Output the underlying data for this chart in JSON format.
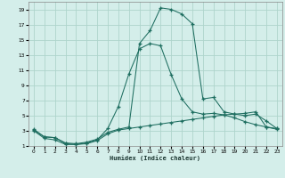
{
  "xlabel": "Humidex (Indice chaleur)",
  "background_color": "#d4eeea",
  "grid_color": "#aed4cc",
  "line_color": "#1e6e60",
  "xlim": [
    -0.5,
    23.5
  ],
  "ylim": [
    1,
    20
  ],
  "xticks": [
    0,
    1,
    2,
    3,
    4,
    5,
    6,
    7,
    8,
    9,
    10,
    11,
    12,
    13,
    14,
    15,
    16,
    17,
    18,
    19,
    20,
    21,
    22,
    23
  ],
  "yticks": [
    1,
    3,
    5,
    7,
    9,
    11,
    13,
    15,
    17,
    19
  ],
  "series_main_x": [
    0,
    1,
    2,
    3,
    4,
    5,
    6,
    7,
    8,
    9,
    10,
    11,
    12,
    13,
    14,
    15,
    16,
    17,
    18,
    19,
    20,
    21,
    22,
    23
  ],
  "series_main_y": [
    3.2,
    2.2,
    2.1,
    1.4,
    1.3,
    1.5,
    1.9,
    2.8,
    3.2,
    3.5,
    14.5,
    16.2,
    19.2,
    19.0,
    18.4,
    17.1,
    7.2,
    7.4,
    5.5,
    5.2,
    5.0,
    5.2,
    4.3,
    3.3
  ],
  "series_mid_x": [
    0,
    1,
    2,
    3,
    4,
    5,
    6,
    7,
    8,
    9,
    10,
    11,
    12,
    13,
    14,
    15,
    16,
    17,
    18,
    19,
    20,
    21,
    22,
    23
  ],
  "series_mid_y": [
    3.1,
    2.2,
    2.1,
    1.3,
    1.2,
    1.4,
    1.8,
    3.3,
    6.2,
    10.5,
    13.8,
    14.5,
    14.2,
    10.4,
    7.2,
    5.5,
    5.2,
    5.3,
    5.1,
    4.7,
    4.2,
    3.8,
    3.5,
    3.3
  ],
  "series_flat_x": [
    0,
    1,
    2,
    3,
    4,
    5,
    6,
    7,
    8,
    9,
    10,
    11,
    12,
    13,
    14,
    15,
    16,
    17,
    18,
    19,
    20,
    21,
    22,
    23
  ],
  "series_flat_y": [
    3.0,
    2.0,
    1.8,
    1.2,
    1.2,
    1.3,
    1.7,
    2.6,
    3.1,
    3.3,
    3.5,
    3.7,
    3.9,
    4.1,
    4.3,
    4.5,
    4.7,
    4.9,
    5.1,
    5.2,
    5.3,
    5.5,
    3.5,
    3.2
  ]
}
